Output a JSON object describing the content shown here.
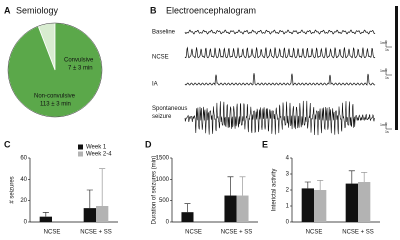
{
  "chart_data": [
    {
      "type": "pie",
      "panel_label": "A",
      "title": "Semiology",
      "categories": [
        "Convulsive",
        "Non-convulsive"
      ],
      "values": [
        7,
        113
      ],
      "errors": [
        3,
        3
      ],
      "value_labels": [
        "7 ± 3 min",
        "113 ± 3 min"
      ],
      "colors": [
        "#d8ecd0",
        "#5ba84a"
      ]
    },
    {
      "type": "bar",
      "panel_label": "C",
      "ylabel": "# seizures",
      "categories": [
        "NCSE",
        "NCSE + SS"
      ],
      "series": [
        {
          "name": "Week 1",
          "color": "#111111",
          "values": [
            5,
            13
          ],
          "errors": [
            4,
            17
          ]
        },
        {
          "name": "Week 2-4",
          "color": "#b3b3b3",
          "values": [
            null,
            15
          ],
          "errors": [
            null,
            35
          ]
        }
      ],
      "ylim": [
        0,
        60
      ],
      "yticks": [
        0,
        20,
        40,
        60
      ],
      "legend": "upper right"
    },
    {
      "type": "bar",
      "panel_label": "D",
      "ylabel": "Duration of seizures (min)",
      "categories": [
        "NCSE",
        "NCSE + SS"
      ],
      "series": [
        {
          "color": "#111111",
          "values": [
            230,
            620
          ],
          "errors": [
            200,
            440
          ]
        },
        {
          "color": "#b3b3b3",
          "values": [
            null,
            620
          ],
          "errors": [
            null,
            440
          ]
        }
      ],
      "ylim": [
        0,
        1500
      ],
      "yticks": [
        0,
        500,
        1000,
        1500
      ]
    },
    {
      "type": "bar",
      "panel_label": "E",
      "ylabel": "Interictal activity",
      "categories": [
        "NCSE",
        "NCSE + SS"
      ],
      "series": [
        {
          "color": "#111111",
          "values": [
            2.1,
            2.4
          ],
          "errors": [
            0.4,
            0.8
          ]
        },
        {
          "color": "#b3b3b3",
          "values": [
            2.0,
            2.5
          ],
          "errors": [
            0.6,
            0.6
          ]
        }
      ],
      "ylim": [
        0,
        4
      ],
      "yticks": [
        0,
        1,
        2,
        3,
        4
      ]
    }
  ],
  "eeg": {
    "panel_label": "B",
    "title": "Electroencephalogram",
    "traces": [
      "Baseline",
      "NCSE",
      "IA",
      "Spontaneous seizure"
    ],
    "scale_bars": [
      {
        "amplitude": "1mV",
        "time": "1s"
      },
      {
        "amplitude": "1mV",
        "time": "1s"
      },
      {
        "amplitude": "1mV",
        "time": "1s"
      }
    ]
  }
}
